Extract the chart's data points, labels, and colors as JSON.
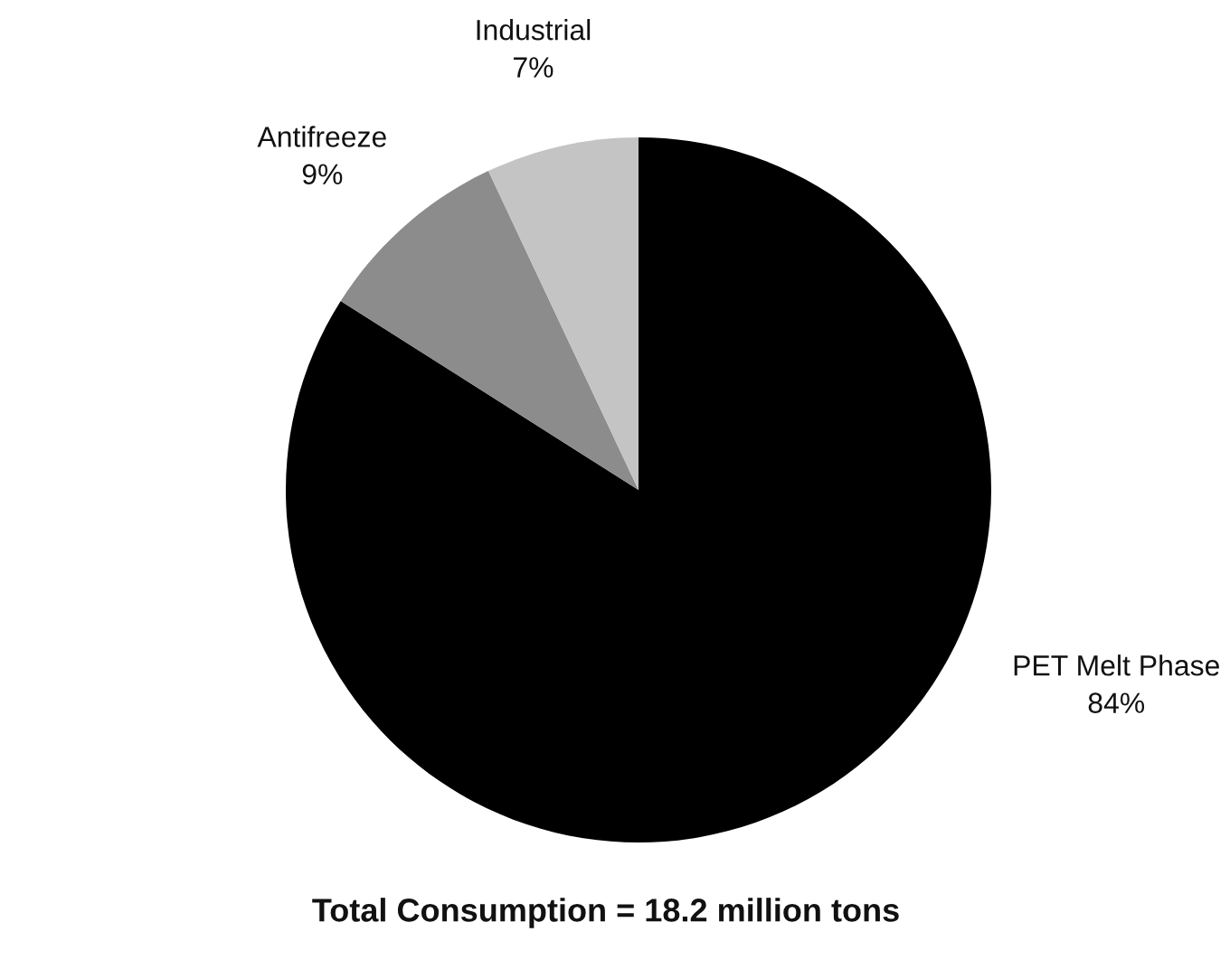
{
  "chart_data": {
    "type": "pie",
    "title": "Total Consumption = 18.2 million tons",
    "categories": [
      "PET Melt Phase",
      "Antifreeze",
      "Industrial"
    ],
    "values": [
      84,
      9,
      7
    ],
    "colors": [
      "#000000",
      "#8c8c8c",
      "#c4c4c4"
    ],
    "value_labels": [
      "84%",
      "9%",
      "7%"
    ]
  }
}
